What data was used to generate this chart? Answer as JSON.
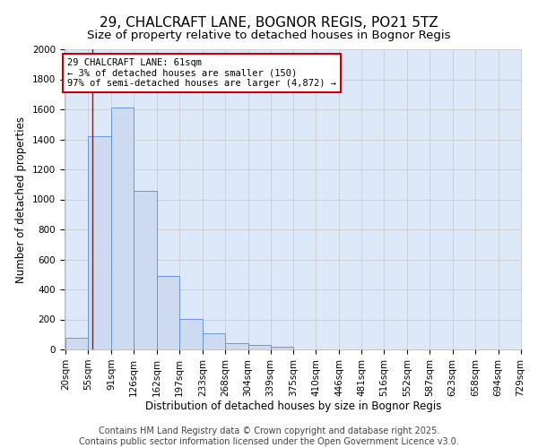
{
  "title": "29, CHALCRAFT LANE, BOGNOR REGIS, PO21 5TZ",
  "subtitle": "Size of property relative to detached houses in Bognor Regis",
  "xlabel": "Distribution of detached houses by size in Bognor Regis",
  "ylabel": "Number of detached properties",
  "footer_line1": "Contains HM Land Registry data © Crown copyright and database right 2025.",
  "footer_line2": "Contains public sector information licensed under the Open Government Licence v3.0.",
  "bar_edges": [
    20,
    55,
    91,
    126,
    162,
    197,
    233,
    268,
    304,
    339,
    375,
    410,
    446,
    481,
    516,
    552,
    587,
    623,
    658,
    694,
    729
  ],
  "bar_heights": [
    80,
    1420,
    1610,
    1055,
    490,
    205,
    105,
    40,
    30,
    20,
    0,
    0,
    0,
    0,
    0,
    0,
    0,
    0,
    0,
    0
  ],
  "bar_color": "#cddaf0",
  "bar_edge_color": "#5b8dd9",
  "red_line_x": 61,
  "annotation_text": "29 CHALCRAFT LANE: 61sqm\n← 3% of detached houses are smaller (150)\n97% of semi-detached houses are larger (4,872) →",
  "annotation_box_color": "white",
  "annotation_box_edge_color": "#cc0000",
  "red_line_color": "#cc0000",
  "ylim": [
    0,
    2000
  ],
  "yticks": [
    0,
    200,
    400,
    600,
    800,
    1000,
    1200,
    1400,
    1600,
    1800,
    2000
  ],
  "grid_color": "#cccccc",
  "background_color": "#dde8f8",
  "title_fontsize": 11,
  "subtitle_fontsize": 9.5,
  "axis_label_fontsize": 8.5,
  "tick_fontsize": 7.5,
  "annotation_fontsize": 7.5,
  "footer_fontsize": 7
}
